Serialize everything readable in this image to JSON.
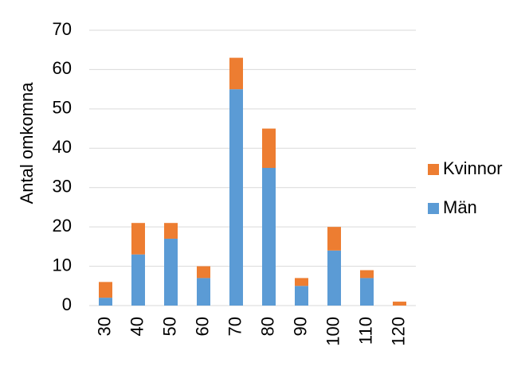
{
  "chart_data": {
    "type": "stacked_bar",
    "y_label": "Antal omkomna",
    "categories": [
      "30",
      "40",
      "50",
      "60",
      "70",
      "80",
      "90",
      "100",
      "110",
      "120"
    ],
    "series": [
      {
        "name": "Män",
        "color": "#5b9bd5",
        "values": [
          2,
          13,
          17,
          7,
          55,
          35,
          5,
          14,
          7,
          0
        ]
      },
      {
        "name": "Kvinnor",
        "color": "#ed7d31",
        "values": [
          4,
          8,
          4,
          3,
          8,
          10,
          2,
          6,
          2,
          1
        ]
      }
    ],
    "ylim": [
      0,
      70
    ],
    "yticks": [
      0,
      10,
      20,
      30,
      40,
      50,
      60,
      70
    ],
    "grid": true,
    "legend": "right"
  }
}
